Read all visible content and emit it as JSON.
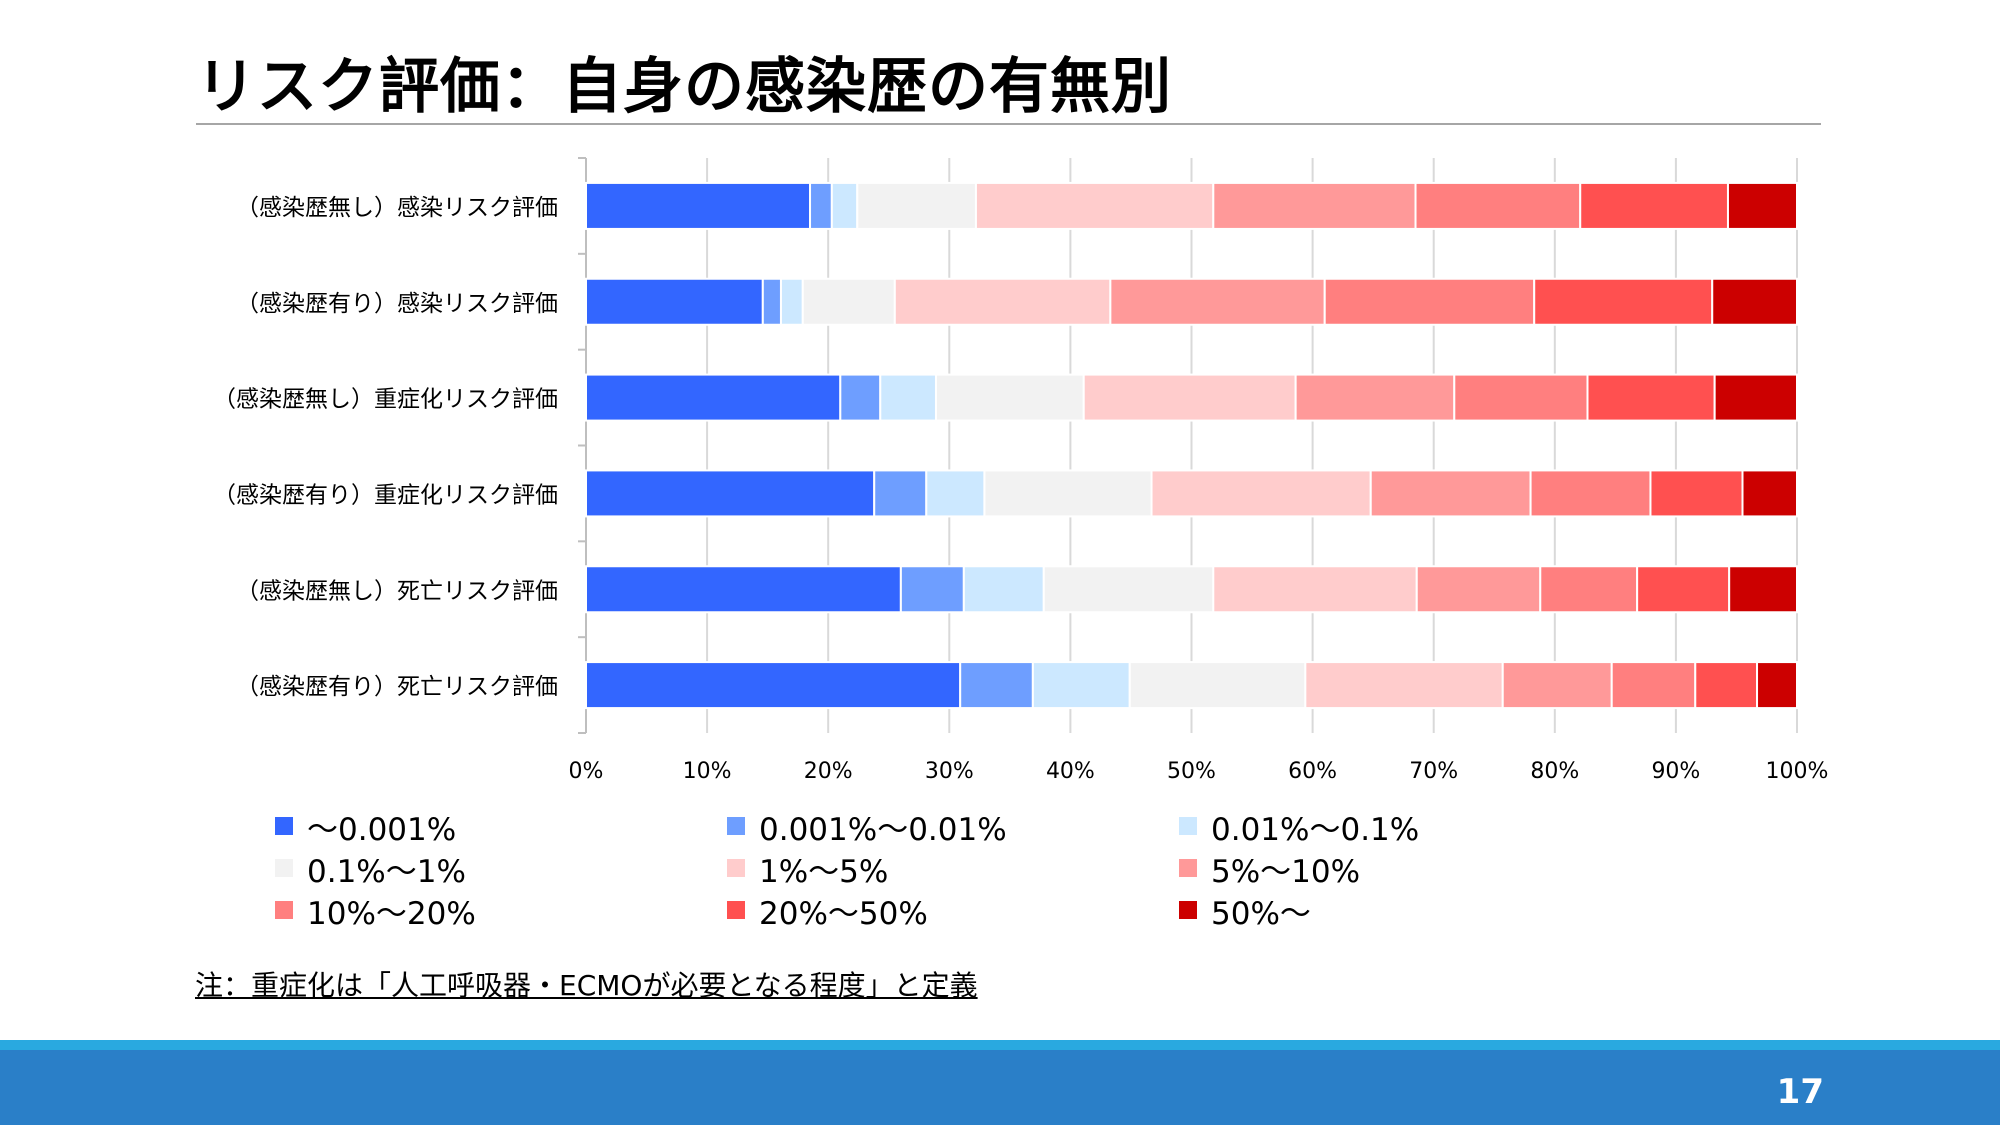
{
  "slide": {
    "title": "リスク評価：自身の感染歴の有無別",
    "note": "注：重症化は「人工呼吸器・ECMOが必要となる程度」と定義",
    "page_number": "17"
  },
  "chart_data": {
    "type": "bar",
    "orientation": "horizontal",
    "stacked": true,
    "percent_stacked": true,
    "categories": [
      "（感染歴無し）感染リスク評価",
      "（感染歴有り）感染リスク評価",
      "（感染歴無し）重症化リスク評価",
      "（感染歴有り）重症化リスク評価",
      "（感染歴無し）死亡リスク評価",
      "（感染歴有り）死亡リスク評価"
    ],
    "x_ticks": [
      "0%",
      "10%",
      "20%",
      "30%",
      "40%",
      "50%",
      "60%",
      "70%",
      "80%",
      "90%",
      "100%"
    ],
    "xlim": [
      0,
      100
    ],
    "grid": true,
    "legend_position": "bottom",
    "series": [
      {
        "name": "～0.001%",
        "color": "#3366ff",
        "values": [
          18.5,
          14.6,
          21.0,
          23.8,
          26.0,
          30.9
        ]
      },
      {
        "name": "0.001%～0.01%",
        "color": "#6e9eff",
        "values": [
          1.8,
          1.5,
          3.3,
          4.3,
          5.2,
          6.0
        ]
      },
      {
        "name": "0.01%～0.1%",
        "color": "#cce8ff",
        "values": [
          2.1,
          1.8,
          4.6,
          4.8,
          6.6,
          8.0
        ]
      },
      {
        "name": "0.1%～1%",
        "color": "#f2f2f2",
        "values": [
          9.8,
          7.6,
          12.2,
          13.8,
          14.0,
          14.5
        ]
      },
      {
        "name": "1%～5%",
        "color": "#ffcccc",
        "values": [
          19.6,
          17.8,
          17.5,
          18.1,
          16.8,
          16.3
        ]
      },
      {
        "name": "5%～10%",
        "color": "#ff9999",
        "values": [
          16.7,
          17.7,
          13.1,
          13.2,
          10.2,
          9.0
        ]
      },
      {
        "name": "10%～20%",
        "color": "#ff7f7f",
        "values": [
          13.6,
          17.3,
          11.0,
          9.9,
          8.0,
          6.9
        ]
      },
      {
        "name": "20%～50%",
        "color": "#ff5050",
        "values": [
          12.2,
          14.7,
          10.5,
          7.6,
          7.6,
          5.1
        ]
      },
      {
        "name": "50%～",
        "color": "#cc0000",
        "values": [
          5.7,
          7.0,
          6.8,
          4.5,
          5.6,
          3.3
        ]
      }
    ]
  }
}
